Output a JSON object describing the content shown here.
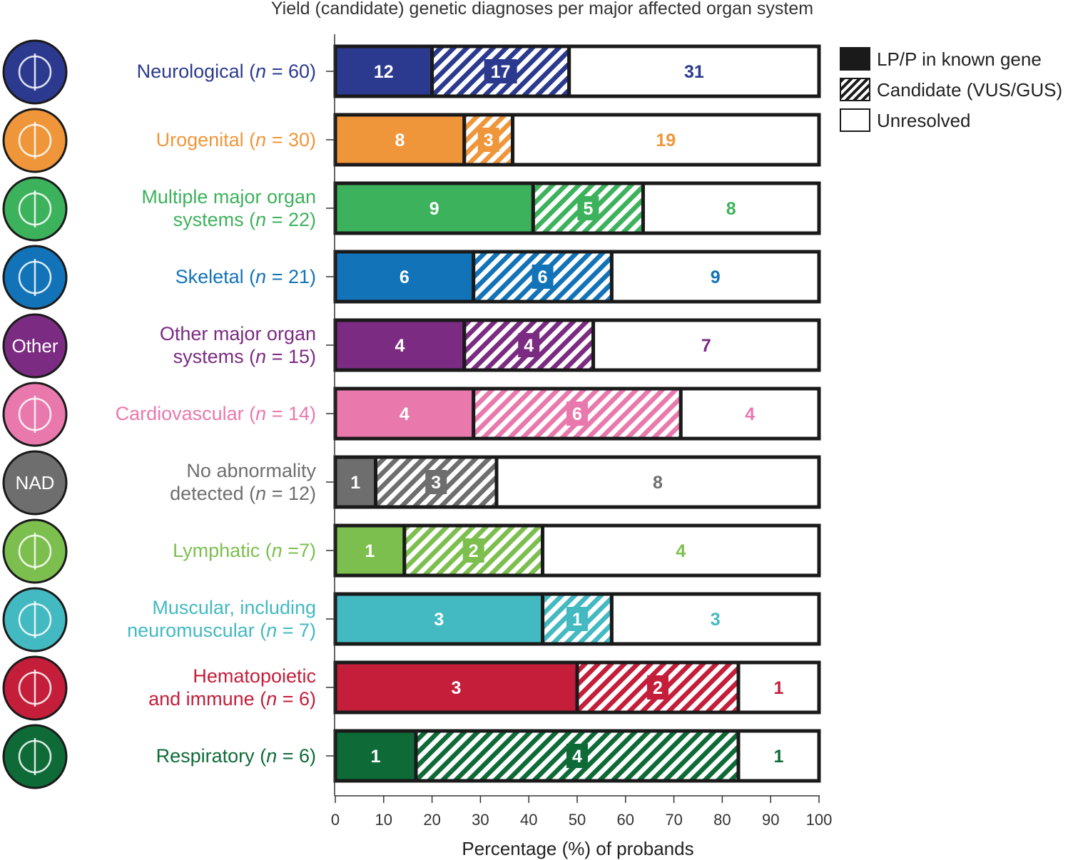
{
  "chart_data": {
    "type": "bar",
    "orientation": "horizontal",
    "stacked": true,
    "title": "Yield (candidate) genetic diagnoses per major affected organ system",
    "xlabel": "Percentage (%) of probands",
    "ylabel": "",
    "xlim": [
      0,
      100
    ],
    "xticks": [
      0,
      10,
      20,
      30,
      40,
      50,
      60,
      70,
      80,
      90,
      100
    ],
    "legend": {
      "position": "top-right",
      "entries": [
        {
          "label": "LP/P in known gene",
          "style": "solid"
        },
        {
          "label": "Candidate (VUS/GUS)",
          "style": "hatched"
        },
        {
          "label": "Unresolved",
          "style": "empty"
        }
      ]
    },
    "series_names": [
      "LP/P in known gene",
      "Candidate (VUS/GUS)",
      "Unresolved"
    ],
    "categories": [
      {
        "name": "Neurological",
        "n": 60,
        "label_lines": [
          [
            "Neurological (",
            "n",
            " = 60)"
          ]
        ],
        "color": "#2b3a8f",
        "icon": "brain-icon",
        "icon_text": "",
        "counts": [
          12,
          17,
          31
        ]
      },
      {
        "name": "Urogenital",
        "n": 30,
        "label_lines": [
          [
            "Urogenital (",
            "n",
            " = 30)"
          ]
        ],
        "color": "#f0963a",
        "icon": "kidney-bladder-icon",
        "icon_text": "",
        "counts": [
          8,
          3,
          19
        ]
      },
      {
        "name": "Multiple major organ systems",
        "n": 22,
        "label_lines": [
          [
            "Multiple major organ",
            "",
            ""
          ],
          [
            "systems (",
            "n",
            " = 22)"
          ]
        ],
        "color": "#3db25c",
        "icon": "multiple-organs-icon",
        "icon_text": "",
        "counts": [
          9,
          5,
          8
        ]
      },
      {
        "name": "Skeletal",
        "n": 21,
        "label_lines": [
          [
            "Skeletal (",
            "n",
            " = 21)"
          ]
        ],
        "color": "#1273b8",
        "icon": "skeleton-icon",
        "icon_text": "",
        "counts": [
          6,
          6,
          9
        ]
      },
      {
        "name": "Other major organ systems",
        "n": 15,
        "label_lines": [
          [
            "Other major organ",
            "",
            ""
          ],
          [
            "systems (",
            "n",
            " = 15)"
          ]
        ],
        "color": "#7b2b82",
        "icon": "other-icon",
        "icon_text": "Other",
        "counts": [
          4,
          4,
          7
        ]
      },
      {
        "name": "Cardiovascular",
        "n": 14,
        "label_lines": [
          [
            "Cardiovascular (",
            "n",
            " = 14)"
          ]
        ],
        "color": "#e979ad",
        "icon": "heart-icon",
        "icon_text": "",
        "counts": [
          4,
          6,
          4
        ]
      },
      {
        "name": "No abnormality detected",
        "n": 12,
        "label_lines": [
          [
            "No abnormality",
            "",
            ""
          ],
          [
            "detected (",
            "n",
            " = 12)"
          ]
        ],
        "color": "#6e6e6e",
        "icon": "nad-icon",
        "icon_text": "NAD",
        "counts": [
          1,
          3,
          8
        ]
      },
      {
        "name": "Lymphatic",
        "n": 7,
        "label_lines": [
          [
            "Lymphatic (",
            "n",
            " =7)"
          ]
        ],
        "color": "#7dbf4e",
        "icon": "lymph-node-icon",
        "icon_text": "",
        "counts": [
          1,
          2,
          4
        ]
      },
      {
        "name": "Muscular, including neuromuscular",
        "n": 7,
        "label_lines": [
          [
            "Muscular, including",
            "",
            ""
          ],
          [
            "neuromuscular (",
            "n",
            " = 7)"
          ]
        ],
        "color": "#43b9c1",
        "icon": "muscle-icon",
        "icon_text": "",
        "counts": [
          3,
          1,
          3
        ]
      },
      {
        "name": "Hematopoietic and immune",
        "n": 6,
        "label_lines": [
          [
            "Hematopoietic",
            "",
            ""
          ],
          [
            "and immune (",
            "n",
            " = 6)"
          ]
        ],
        "color": "#c41e3a",
        "icon": "blood-cells-icon",
        "icon_text": "",
        "counts": [
          3,
          2,
          1
        ]
      },
      {
        "name": "Respiratory",
        "n": 6,
        "label_lines": [
          [
            "Respiratory (",
            "n",
            " = 6)"
          ]
        ],
        "color": "#0e6b38",
        "icon": "lungs-icon",
        "icon_text": "",
        "counts": [
          1,
          4,
          1
        ]
      }
    ]
  }
}
